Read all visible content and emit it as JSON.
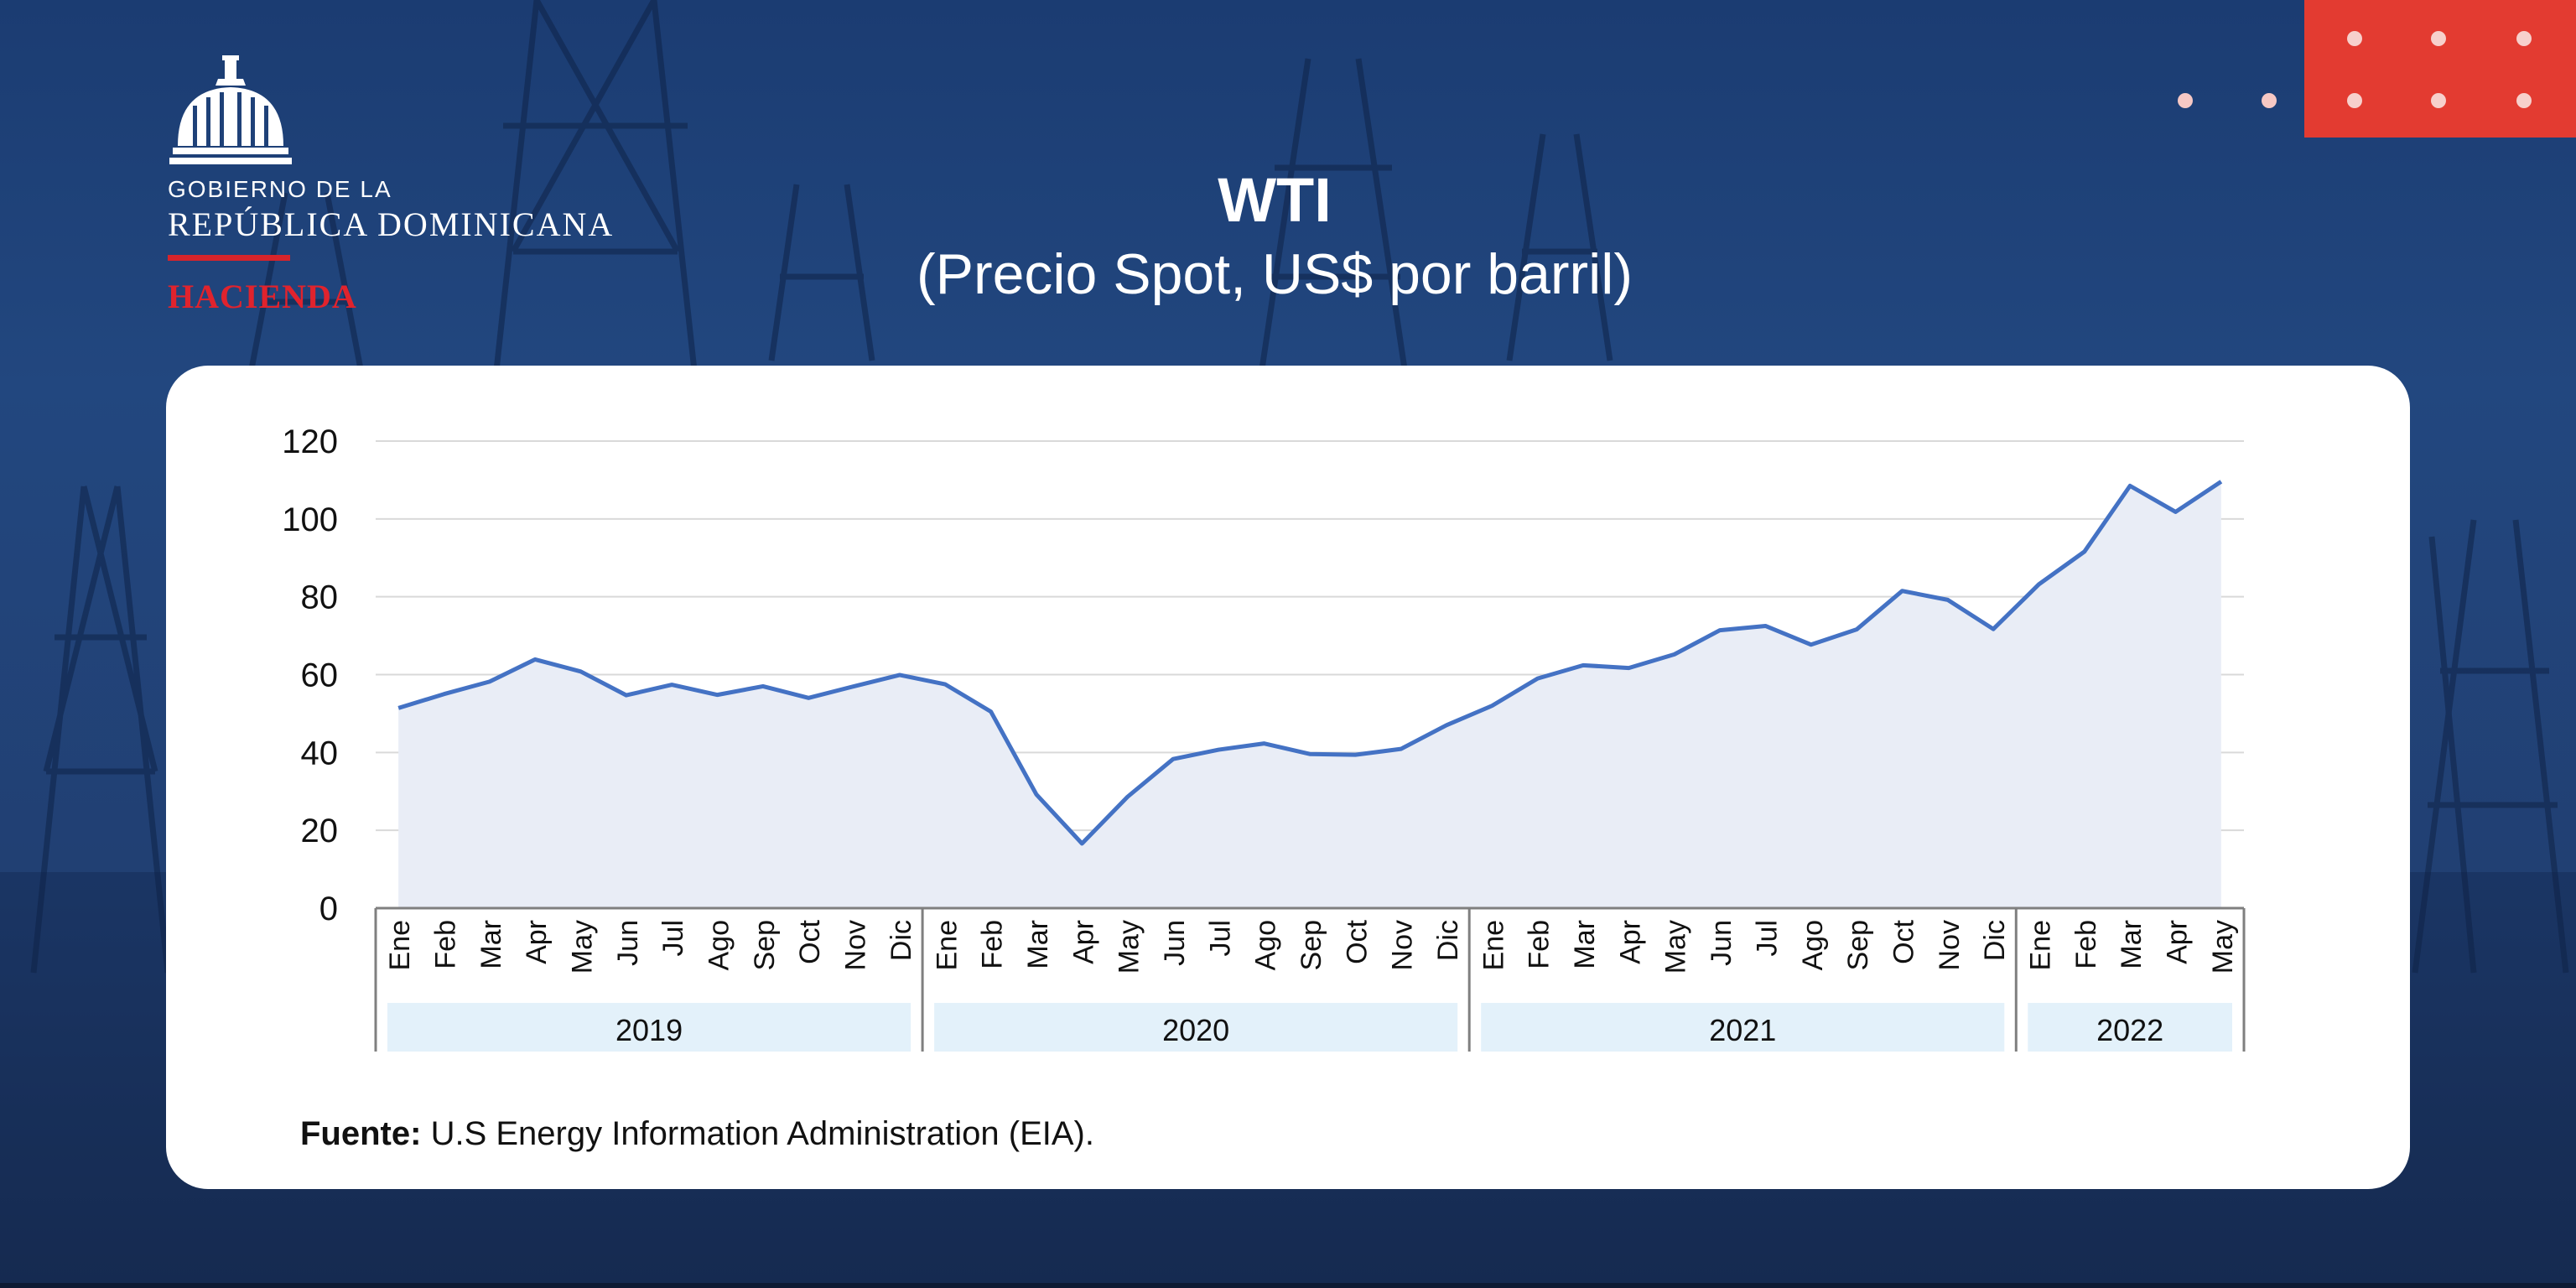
{
  "logo": {
    "line1": "GOBIERNO DE LA",
    "line2": "REPÚBLICA DOMINICANA",
    "line3": "HACIENDA"
  },
  "header": {
    "title": "WTI",
    "subtitle": "(Precio Spot, US$ por barril)"
  },
  "source": {
    "label": "Fuente:",
    "text": "U.S Energy Information Administration (EIA)."
  },
  "colors": {
    "background": "#1f4178",
    "accent_red": "#e33b31",
    "line": "#4472c4",
    "area_fill": "#e9edf6",
    "year_band": "#e3f1fa"
  },
  "chart_data": {
    "type": "area",
    "title": "WTI",
    "subtitle": "(Precio Spot, US$ por barril)",
    "ylim": [
      0,
      120
    ],
    "yticks": [
      0,
      20,
      40,
      60,
      80,
      100,
      120
    ],
    "grid": true,
    "legend": "none",
    "years": [
      {
        "label": "2019",
        "months": 12
      },
      {
        "label": "2020",
        "months": 12
      },
      {
        "label": "2021",
        "months": 12
      },
      {
        "label": "2022",
        "months": 5
      }
    ],
    "categories": [
      "Ene",
      "Feb",
      "Mar",
      "Apr",
      "May",
      "Jun",
      "Jul",
      "Ago",
      "Sep",
      "Oct",
      "Nov",
      "Dic",
      "Ene",
      "Feb",
      "Mar",
      "Apr",
      "May",
      "Jun",
      "Jul",
      "Ago",
      "Sep",
      "Oct",
      "Nov",
      "Dic",
      "Ene",
      "Feb",
      "Mar",
      "Apr",
      "May",
      "Jun",
      "Jul",
      "Ago",
      "Sep",
      "Oct",
      "Nov",
      "Dic",
      "Ene",
      "Feb",
      "Mar",
      "Apr",
      "May"
    ],
    "series": [
      {
        "values": [
          51.4,
          55.0,
          58.2,
          63.9,
          60.8,
          54.7,
          57.4,
          54.8,
          57.0,
          54.0,
          57.0,
          59.9,
          57.5,
          50.5,
          29.2,
          16.6,
          28.6,
          38.3,
          40.7,
          42.3,
          39.6,
          39.4,
          40.9,
          47.0,
          52.0,
          59.0,
          62.4,
          61.7,
          65.2,
          71.4,
          72.5,
          67.7,
          71.6,
          81.5,
          79.2,
          71.7,
          83.2,
          91.6,
          108.5,
          101.8,
          109.6
        ]
      }
    ]
  }
}
